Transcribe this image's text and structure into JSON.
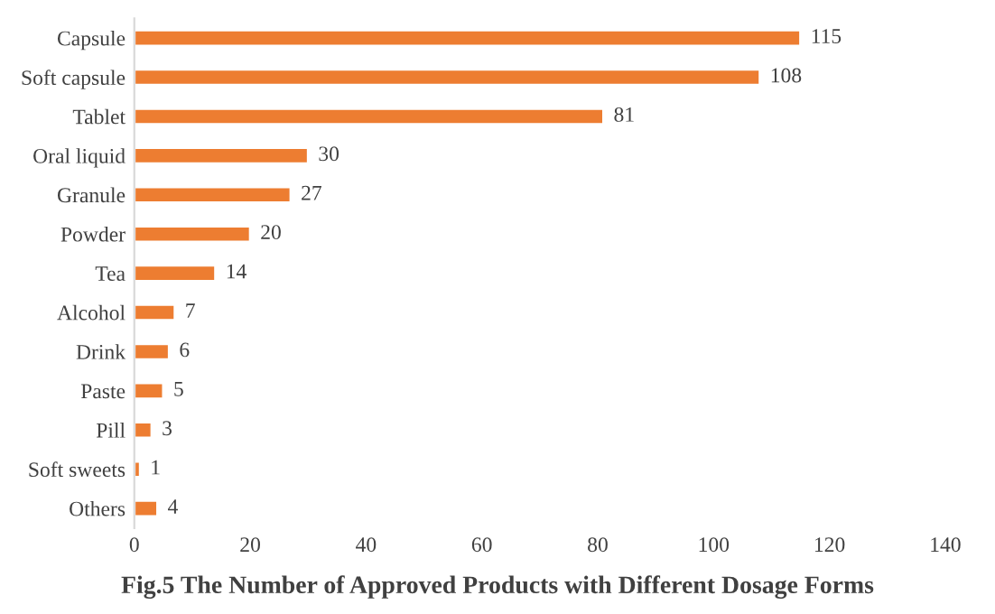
{
  "chart_data": {
    "type": "bar",
    "orientation": "horizontal",
    "title": "Fig.5 The Number of Approved Products with Different Dosage Forms",
    "categories": [
      "Capsule",
      "Soft capsule",
      "Tablet",
      "Oral liquid",
      "Granule",
      "Powder",
      "Tea",
      "Alcohol",
      "Drink",
      "Paste",
      "Pill",
      "Soft sweets",
      "Others"
    ],
    "values": [
      115,
      108,
      81,
      30,
      27,
      20,
      14,
      7,
      6,
      5,
      3,
      1,
      4
    ],
    "color": "#ed7d31",
    "xlim": [
      0,
      140
    ],
    "xticks": [
      0,
      20,
      40,
      60,
      80,
      100,
      120,
      140
    ],
    "grid": false,
    "data_labels": true
  }
}
